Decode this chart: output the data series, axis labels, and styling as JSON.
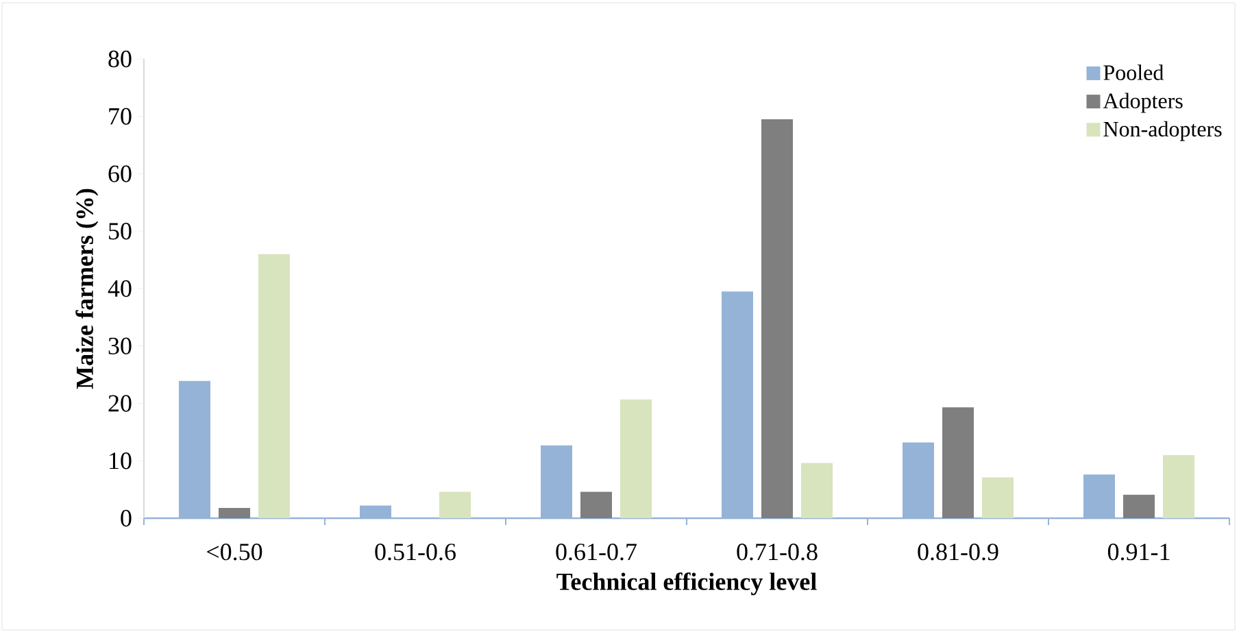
{
  "chart_data": {
    "type": "bar",
    "xlabel": "Technical efficiency level",
    "ylabel": "Maize farmers (%)",
    "categories": [
      "<0.50",
      "0.51-0.6",
      "0.61-0.7",
      "0.71-0.8",
      "0.81-0.9",
      "0.91-1"
    ],
    "series": [
      {
        "name": "Pooled",
        "color": "#95b3d7",
        "values": [
          23.9,
          2.2,
          12.7,
          39.5,
          13.2,
          7.6
        ]
      },
      {
        "name": "Adopters",
        "color": "#7f7f7f",
        "values": [
          1.8,
          0,
          4.6,
          69.5,
          19.3,
          4.1
        ]
      },
      {
        "name": "Non-adopters",
        "color": "#d7e4bd",
        "values": [
          46.0,
          4.6,
          20.7,
          9.6,
          7.1,
          11.0
        ]
      }
    ],
    "ylim": [
      0,
      80
    ],
    "yticks": [
      0,
      10,
      20,
      30,
      40,
      50,
      60,
      70,
      80
    ],
    "legend": "top right"
  }
}
